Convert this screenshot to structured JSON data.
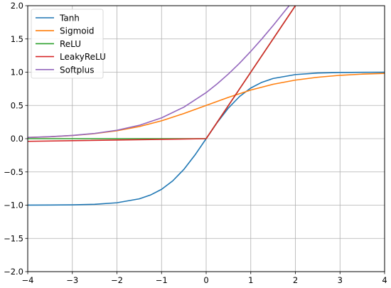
{
  "chart_data": {
    "type": "line",
    "title": "",
    "xlabel": "",
    "ylabel": "",
    "xlim": [
      -4,
      4
    ],
    "ylim": [
      -2,
      2
    ],
    "xticks": [
      -4,
      -3,
      -2,
      -1,
      0,
      1,
      2,
      3,
      4
    ],
    "yticks": [
      -2.0,
      -1.5,
      -1.0,
      -0.5,
      0.0,
      0.5,
      1.0,
      1.5,
      2.0
    ],
    "xtick_labels": [
      "−4",
      "−3",
      "−2",
      "−1",
      "0",
      "1",
      "2",
      "3",
      "4"
    ],
    "ytick_labels": [
      "−2.0",
      "−1.5",
      "−1.0",
      "−0.5",
      "0.0",
      "0.5",
      "1.0",
      "1.5",
      "2.0"
    ],
    "grid": true,
    "legend_position": "top-left",
    "series": [
      {
        "name": "Tanh",
        "color": "#1f77b4",
        "x": [
          -4,
          -3.5,
          -3,
          -2.5,
          -2,
          -1.5,
          -1.25,
          -1,
          -0.75,
          -0.5,
          -0.25,
          0,
          0.25,
          0.5,
          0.75,
          1,
          1.25,
          1.5,
          2,
          2.5,
          3,
          3.5,
          4
        ],
        "y": [
          -0.999,
          -0.998,
          -0.995,
          -0.987,
          -0.964,
          -0.905,
          -0.848,
          -0.762,
          -0.635,
          -0.462,
          -0.245,
          0,
          0.245,
          0.462,
          0.635,
          0.762,
          0.848,
          0.905,
          0.964,
          0.987,
          0.995,
          0.998,
          0.999
        ]
      },
      {
        "name": "Sigmoid",
        "color": "#ff7f0e",
        "x": [
          -4,
          -3.5,
          -3,
          -2.5,
          -2,
          -1.5,
          -1,
          -0.5,
          0,
          0.5,
          1,
          1.5,
          2,
          2.5,
          3,
          3.5,
          4
        ],
        "y": [
          0.018,
          0.029,
          0.047,
          0.076,
          0.119,
          0.182,
          0.269,
          0.378,
          0.5,
          0.622,
          0.731,
          0.818,
          0.881,
          0.924,
          0.953,
          0.971,
          0.982
        ]
      },
      {
        "name": "ReLU",
        "color": "#2ca02c",
        "x": [
          -4,
          0,
          2.0
        ],
        "y": [
          0,
          0,
          2.0
        ]
      },
      {
        "name": "LeakyReLU",
        "color": "#d62728",
        "x": [
          -4,
          0,
          2.0
        ],
        "y": [
          -0.04,
          0,
          2.0
        ]
      },
      {
        "name": "Softplus",
        "color": "#9467bd",
        "x": [
          -4,
          -3.5,
          -3,
          -2.5,
          -2,
          -1.5,
          -1,
          -0.5,
          0,
          0.25,
          0.5,
          0.75,
          1,
          1.25,
          1.5,
          1.75,
          1.86
        ],
        "y": [
          0.018,
          0.03,
          0.049,
          0.079,
          0.127,
          0.201,
          0.313,
          0.474,
          0.693,
          0.826,
          0.974,
          1.136,
          1.313,
          1.502,
          1.701,
          1.909,
          2.0
        ]
      }
    ]
  }
}
